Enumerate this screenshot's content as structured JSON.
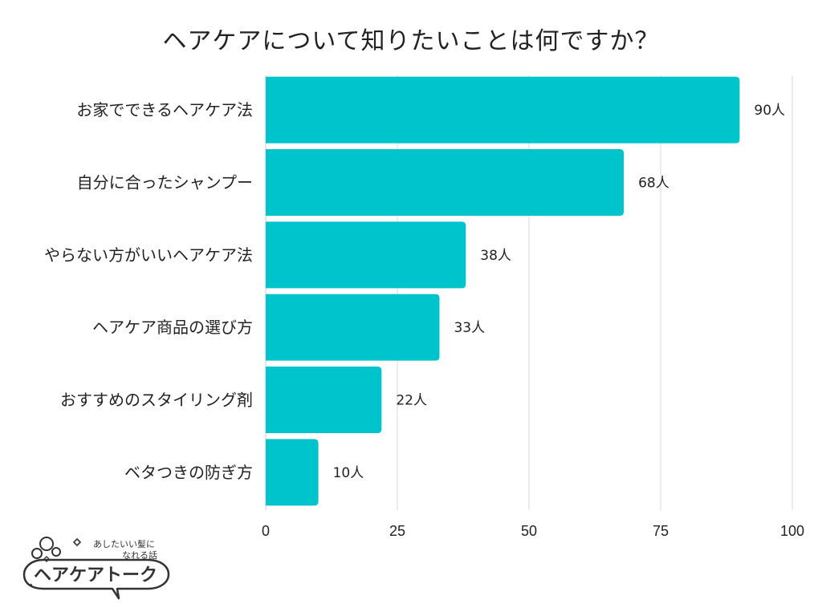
{
  "title": "ヘアケアについて知りたいことは何ですか？",
  "unit": "人",
  "chart_data": {
    "type": "bar",
    "orientation": "horizontal",
    "title": "ヘアケアについて知りたいことは何ですか？",
    "categories": [
      "お家でできるヘアケア法",
      "自分に合ったシャンプー",
      "やらない方がいいヘアケア法",
      "ヘアケア商品の選び方",
      "おすすめのスタイリング剤",
      "ベタつきの防ぎ方"
    ],
    "values": [
      90,
      68,
      38,
      33,
      22,
      10
    ],
    "value_labels": [
      "90人",
      "68人",
      "38人",
      "33人",
      "22人",
      "10人"
    ],
    "xlim": [
      0,
      100
    ],
    "xticks": [
      "0",
      "25",
      "50",
      "75",
      "100"
    ],
    "grid": "vertical",
    "bar_color": "#00C4CC"
  },
  "logo": {
    "line1": "あしたいい髪に",
    "line2": "なれる話",
    "name": "ヘアケアトーク"
  }
}
